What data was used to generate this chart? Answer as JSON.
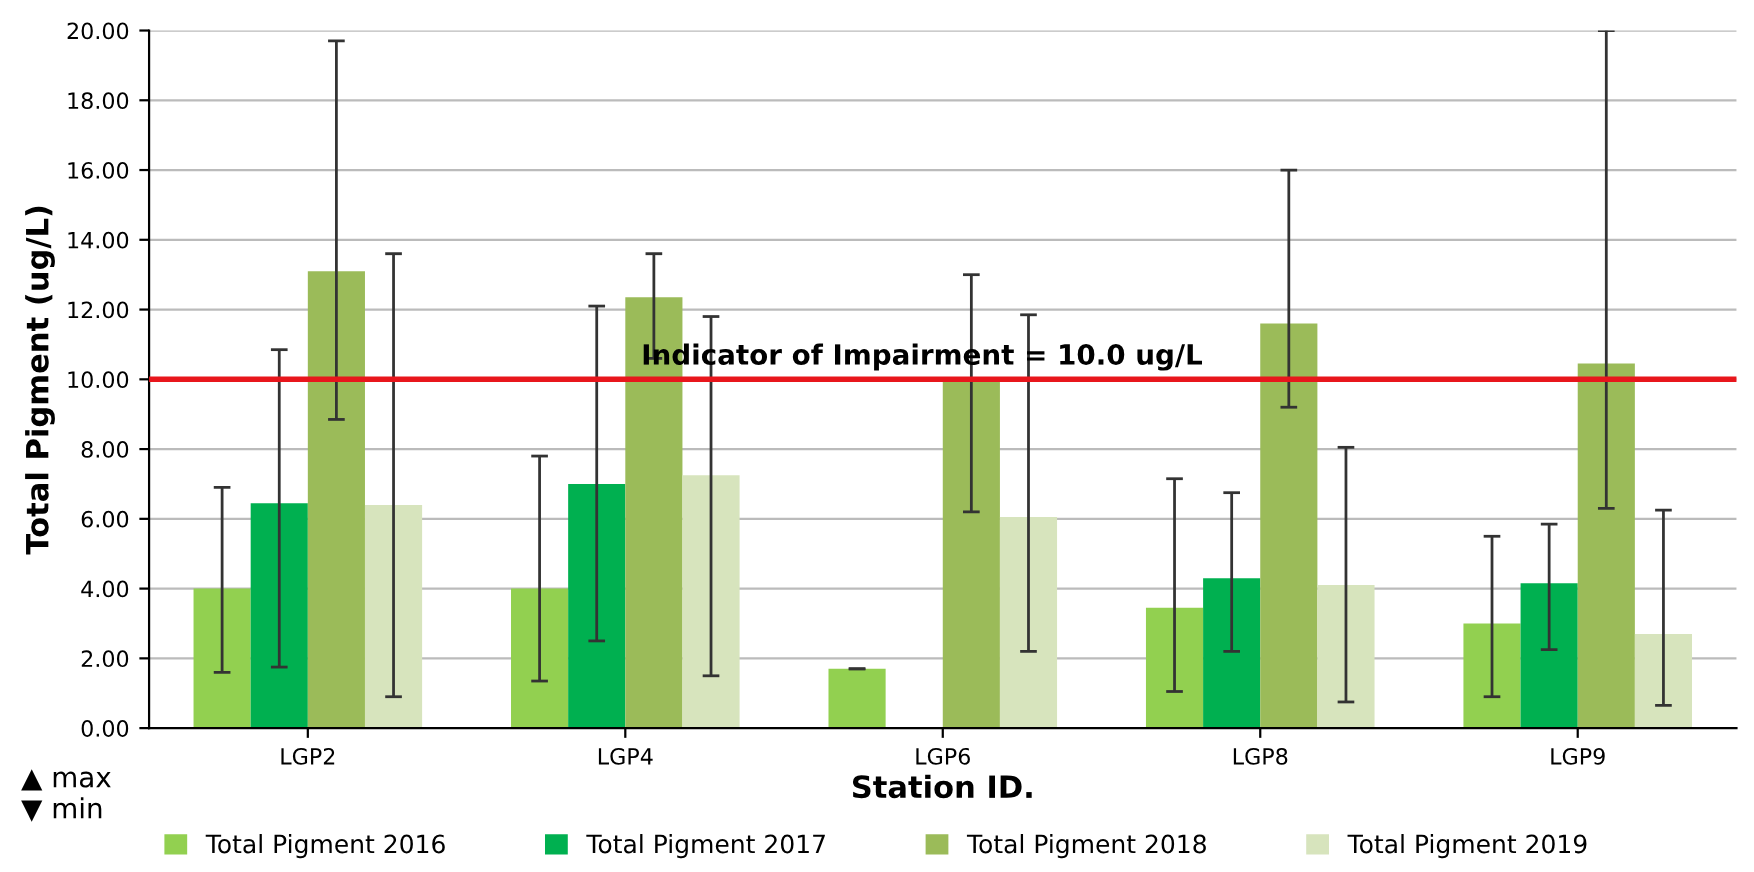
{
  "chart_data": {
    "type": "bar",
    "xlabel": "Station ID.",
    "ylabel": "Total Pigment (ug/L)",
    "categories": [
      "LGP2",
      "LGP4",
      "LGP6",
      "LGP8",
      "LGP9"
    ],
    "series": [
      {
        "name": "Total Pigment 2016",
        "color": "#92d050",
        "values": [
          4.0,
          4.0,
          1.7,
          3.45,
          3.0
        ],
        "errors": [
          [
            1.6,
            6.9
          ],
          [
            1.35,
            7.8
          ],
          [
            1.7,
            1.7
          ],
          [
            1.05,
            7.15
          ],
          [
            0.9,
            5.5
          ]
        ]
      },
      {
        "name": "Total Pigment 2017",
        "color": "#00b050",
        "values": [
          6.45,
          7.0,
          null,
          4.3,
          4.15
        ],
        "errors": [
          [
            1.75,
            10.85
          ],
          [
            2.5,
            12.1
          ],
          null,
          [
            2.2,
            6.75
          ],
          [
            2.25,
            5.85
          ]
        ]
      },
      {
        "name": "Total Pigment 2018",
        "color": "#9bbb59",
        "values": [
          13.1,
          12.35,
          10.0,
          11.6,
          10.45
        ],
        "errors": [
          [
            8.85,
            19.7
          ],
          [
            10.6,
            13.6
          ],
          [
            6.2,
            13.0
          ],
          [
            9.2,
            16.0
          ],
          [
            6.3,
            20.0
          ]
        ]
      },
      {
        "name": "Total Pigment 2019",
        "color": "#d7e4bd",
        "values": [
          6.4,
          7.25,
          6.05,
          4.1,
          2.7
        ],
        "errors": [
          [
            0.9,
            13.6
          ],
          [
            1.5,
            11.8
          ],
          [
            2.2,
            11.85
          ],
          [
            0.75,
            8.05
          ],
          [
            0.65,
            6.25
          ]
        ]
      }
    ],
    "ylim": [
      0,
      20
    ],
    "yticks": [
      {
        "value": 0,
        "label": "0.00"
      },
      {
        "value": 2,
        "label": "2.00"
      },
      {
        "value": 4,
        "label": "4.00"
      },
      {
        "value": 6,
        "label": "6.00"
      },
      {
        "value": 8,
        "label": "8.00"
      },
      {
        "value": 10,
        "label": "10.00"
      },
      {
        "value": 12,
        "label": "12.00"
      },
      {
        "value": 14,
        "label": "14.00"
      },
      {
        "value": 16,
        "label": "16.00"
      },
      {
        "value": 18,
        "label": "18.00"
      },
      {
        "value": 20,
        "label": "20.00"
      }
    ],
    "ref_lines": [
      {
        "axis": "y",
        "value": 10.0,
        "label": "Indicator of Impairment = 10.0 ug/L",
        "color": "#e8161c"
      }
    ],
    "annotations": [
      "▲ max\n▼ min"
    ],
    "grid": "y",
    "legend": "bottom"
  }
}
